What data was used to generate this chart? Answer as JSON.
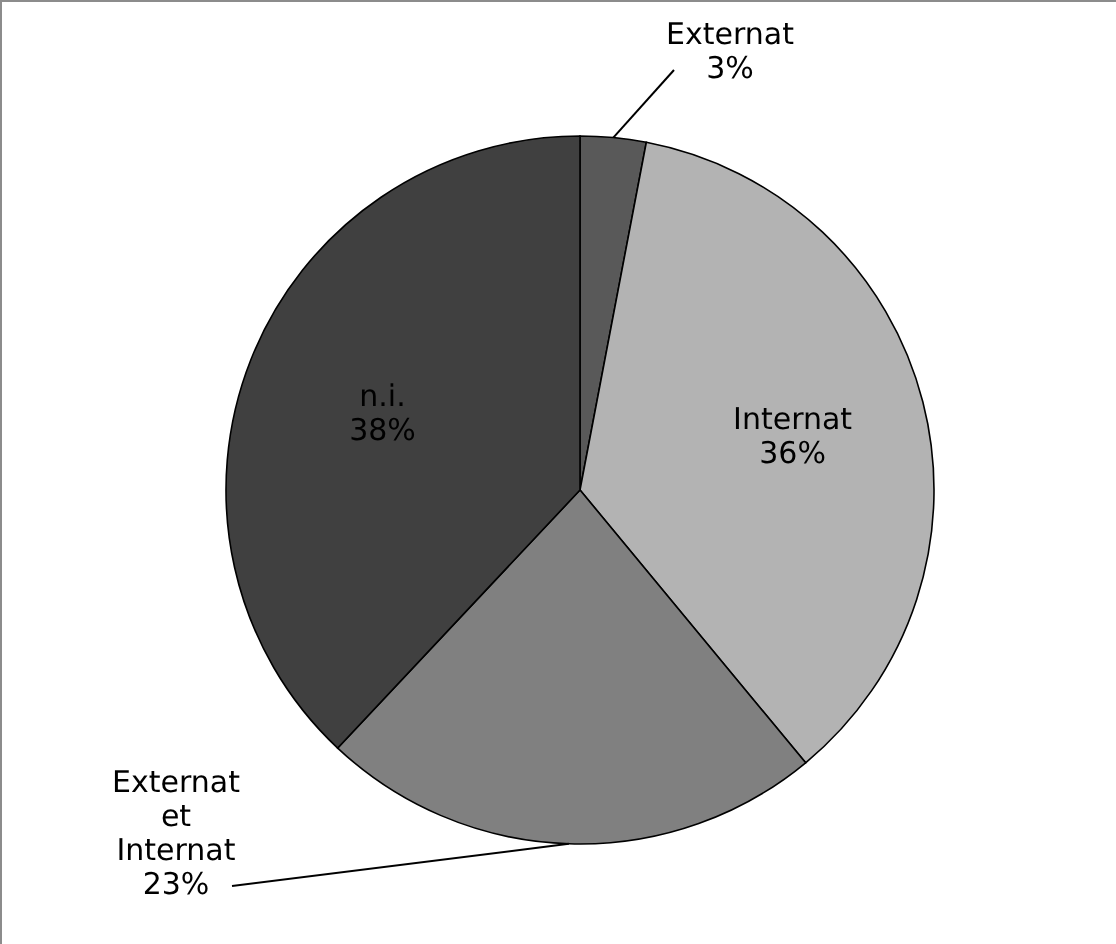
{
  "chart_data": {
    "type": "pie",
    "categories": [
      "Externat",
      "Internat",
      "Externat et Internat",
      "n.i."
    ],
    "values": [
      3,
      36,
      23,
      38
    ],
    "value_labels": [
      "3%",
      "36%",
      "23%",
      "38%"
    ],
    "colors": [
      "#595959",
      "#b3b3b3",
      "#808080",
      "#404040"
    ]
  }
}
